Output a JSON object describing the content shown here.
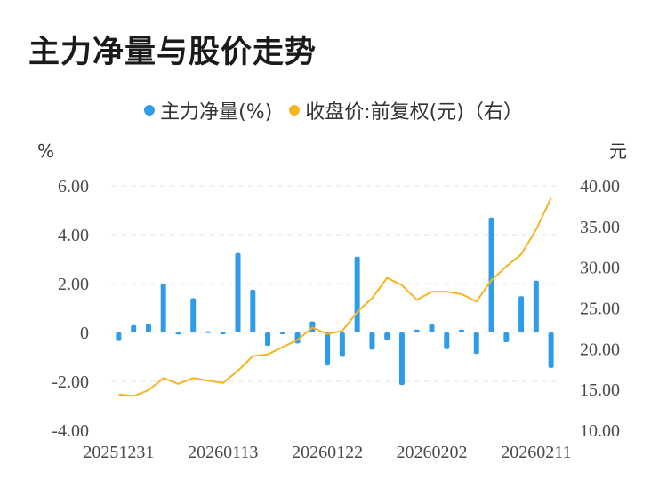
{
  "title": "主力净量与股价走势",
  "colors": {
    "bar": "#2e9ce8",
    "line": "#f5b520",
    "grid": "#e6e6e6",
    "text": "#4a4a4a"
  },
  "chart_data": {
    "type": "bar",
    "title": "主力净量与股价走势",
    "legend": [
      {
        "name": "主力净量(%)",
        "color": "#2e9ce8"
      },
      {
        "name": "收盘价:前复权(元)（右）",
        "color": "#f5b520"
      }
    ],
    "left_axis": {
      "unit": "%",
      "ticks": [
        "6.00",
        "4.00",
        "2.00",
        "0",
        "-2.00",
        "-4.00"
      ],
      "ylim": [
        -4,
        6
      ]
    },
    "right_axis": {
      "unit": "元",
      "ticks": [
        "40.00",
        "35.00",
        "30.00",
        "25.00",
        "20.00",
        "15.00",
        "10.00"
      ],
      "ylim": [
        10,
        40
      ]
    },
    "x_tick_labels": [
      "20251231",
      "20260113",
      "20260122",
      "20260202",
      "20260211"
    ],
    "x_tick_indices": [
      0,
      7,
      14,
      21,
      28
    ],
    "series": [
      {
        "name": "主力净量(%)",
        "kind": "bar",
        "axis": "left",
        "values": [
          -0.35,
          0.3,
          0.35,
          2.0,
          -0.08,
          1.4,
          0.05,
          -0.05,
          3.25,
          1.75,
          -0.55,
          -0.05,
          -0.45,
          0.45,
          -1.35,
          -1.0,
          3.1,
          -0.7,
          -0.3,
          -2.15,
          0.12,
          0.33,
          -0.68,
          0.12,
          -0.88,
          4.7,
          -0.4,
          1.48,
          2.12,
          -1.45
        ]
      },
      {
        "name": "收盘价:前复权(元)（右）",
        "kind": "line",
        "axis": "right",
        "values": [
          14.4,
          14.2,
          14.9,
          16.4,
          15.7,
          16.4,
          16.1,
          15.8,
          17.3,
          19.1,
          19.3,
          20.2,
          21.1,
          22.6,
          21.8,
          22.2,
          24.5,
          26.2,
          28.7,
          27.8,
          26.0,
          27.0,
          27.0,
          26.7,
          25.8,
          28.4,
          30.1,
          31.6,
          34.6,
          38.5
        ]
      }
    ]
  }
}
